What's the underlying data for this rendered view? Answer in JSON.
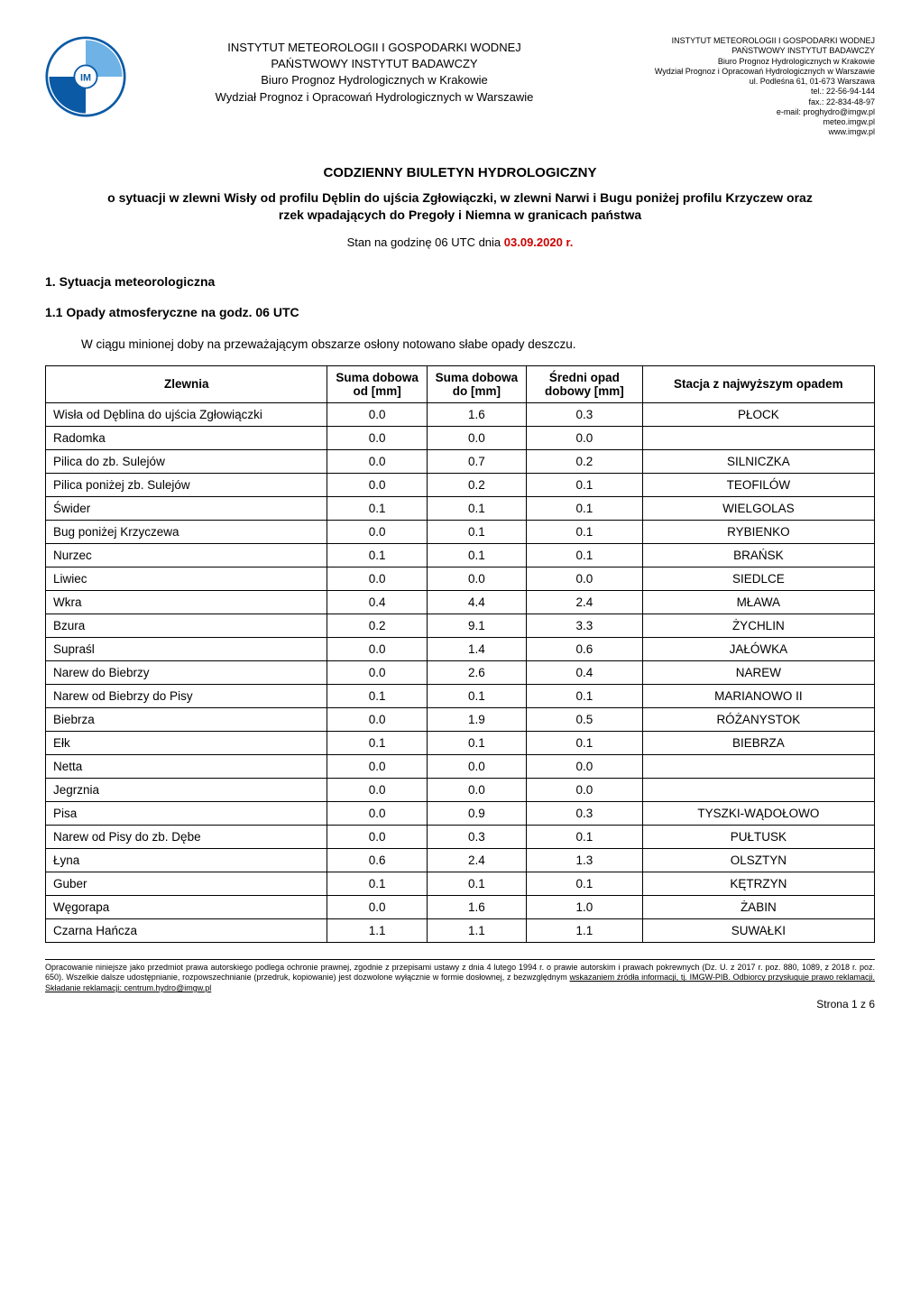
{
  "header": {
    "center": {
      "line1": "INSTYTUT METEOROLOGII I GOSPODARKI WODNEJ",
      "line2": "PAŃSTWOWY INSTYTUT BADAWCZY",
      "line3": "Biuro Prognoz Hydrologicznych w Krakowie",
      "line4": "Wydział Prognoz i Opracowań Hydrologicznych w Warszawie"
    },
    "right": {
      "l1": "INSTYTUT METEOROLOGII I GOSPODARKI WODNEJ",
      "l2": "PAŃSTWOWY INSTYTUT BADAWCZY",
      "l3": "Biuro Prognoz Hydrologicznych w Krakowie",
      "l4": "Wydział Prognoz i Opracowań Hydrologicznych w Warszawie",
      "l5": "ul. Podleśna 61, 01-673 Warszawa",
      "l6": "tel.: 22-56-94-144",
      "l7": "fax.: 22-834-48-97",
      "l8": "e-mail: proghydro@imgw.pl",
      "l9": "meteo.imgw.pl",
      "l10": "www.imgw.pl"
    }
  },
  "title": "CODZIENNY BIULETYN HYDROLOGICZNY",
  "subtitle": "o sytuacji w zlewni Wisły od profilu Dęblin do ujścia Zgłowiączki, w zlewni Narwi i Bugu poniżej profilu Krzyczew oraz rzek wpadających do Pregoły i Niemna w granicach państwa",
  "date_prefix": "Stan na godzinę 06 UTC dnia ",
  "date_value": "03.09.2020 r.",
  "sec1": "1.   Sytuacja meteorologiczna",
  "sec11": "1.1   Opady atmosferyczne na godz. 06 UTC",
  "para1": "W ciągu minionej doby na przeważającym obszarze osłony notowano słabe opady deszczu.",
  "table": {
    "columns": {
      "c1": "Zlewnia",
      "c2": "Suma dobowa od [mm]",
      "c3": "Suma dobowa do [mm]",
      "c4": "Średni opad dobowy [mm]",
      "c5": "Stacja z najwyższym opadem"
    },
    "col_widths": [
      "34%",
      "12%",
      "12%",
      "14%",
      "28%"
    ],
    "header_fontsize": 13,
    "cell_fontsize": 13.5,
    "border_color": "#000000",
    "rows": [
      {
        "z": "Wisła od Dęblina do ujścia Zgłowiączki",
        "od": "0.0",
        "do": "1.6",
        "sr": "0.3",
        "st": "PŁOCK"
      },
      {
        "z": "Radomka",
        "od": "0.0",
        "do": "0.0",
        "sr": "0.0",
        "st": ""
      },
      {
        "z": "Pilica do zb. Sulejów",
        "od": "0.0",
        "do": "0.7",
        "sr": "0.2",
        "st": "SILNICZKA"
      },
      {
        "z": "Pilica poniżej zb. Sulejów",
        "od": "0.0",
        "do": "0.2",
        "sr": "0.1",
        "st": "TEOFILÓW"
      },
      {
        "z": "Świder",
        "od": "0.1",
        "do": "0.1",
        "sr": "0.1",
        "st": "WIELGOLAS"
      },
      {
        "z": "Bug poniżej Krzyczewa",
        "od": "0.0",
        "do": "0.1",
        "sr": "0.1",
        "st": "RYBIENKO"
      },
      {
        "z": "Nurzec",
        "od": "0.1",
        "do": "0.1",
        "sr": "0.1",
        "st": "BRAŃSK"
      },
      {
        "z": "Liwiec",
        "od": "0.0",
        "do": "0.0",
        "sr": "0.0",
        "st": "SIEDLCE"
      },
      {
        "z": "Wkra",
        "od": "0.4",
        "do": "4.4",
        "sr": "2.4",
        "st": "MŁAWA"
      },
      {
        "z": "Bzura",
        "od": "0.2",
        "do": "9.1",
        "sr": "3.3",
        "st": "ŻYCHLIN"
      },
      {
        "z": "Supraśl",
        "od": "0.0",
        "do": "1.4",
        "sr": "0.6",
        "st": "JAŁÓWKA"
      },
      {
        "z": "Narew do Biebrzy",
        "od": "0.0",
        "do": "2.6",
        "sr": "0.4",
        "st": "NAREW"
      },
      {
        "z": "Narew od Biebrzy do Pisy",
        "od": "0.1",
        "do": "0.1",
        "sr": "0.1",
        "st": "MARIANOWO II"
      },
      {
        "z": "Biebrza",
        "od": "0.0",
        "do": "1.9",
        "sr": "0.5",
        "st": "RÓŻANYSTOK"
      },
      {
        "z": "Ełk",
        "od": "0.1",
        "do": "0.1",
        "sr": "0.1",
        "st": "BIEBRZA"
      },
      {
        "z": "Netta",
        "od": "0.0",
        "do": "0.0",
        "sr": "0.0",
        "st": ""
      },
      {
        "z": "Jegrznia",
        "od": "0.0",
        "do": "0.0",
        "sr": "0.0",
        "st": ""
      },
      {
        "z": "Pisa",
        "od": "0.0",
        "do": "0.9",
        "sr": "0.3",
        "st": "TYSZKI-WĄDOŁOWO"
      },
      {
        "z": "Narew od Pisy do zb. Dębe",
        "od": "0.0",
        "do": "0.3",
        "sr": "0.1",
        "st": "PUŁTUSK"
      },
      {
        "z": "Łyna",
        "od": "0.6",
        "do": "2.4",
        "sr": "1.3",
        "st": "OLSZTYN"
      },
      {
        "z": "Guber",
        "od": "0.1",
        "do": "0.1",
        "sr": "0.1",
        "st": "KĘTRZYN"
      },
      {
        "z": "Węgorapa",
        "od": "0.0",
        "do": "1.6",
        "sr": "1.0",
        "st": "ŻABIN"
      },
      {
        "z": "Czarna Hańcza",
        "od": "1.1",
        "do": "1.1",
        "sr": "1.1",
        "st": "SUWAŁKI"
      }
    ]
  },
  "footer": {
    "text_plain": "Opracowanie niniejsze jako przedmiot prawa autorskiego podlega ochronie prawnej, zgodnie z przepisami ustawy z dnia 4 lutego 1994 r. o prawie autorskim i prawach pokrewnych (Dz. U. z 2017 r. poz. 880, 1089, z 2018 r. poz. 650). Wszelkie dalsze udostępnianie, rozpowszechnianie (przedruk, kopiowanie) jest dozwolone wyłącznie w formie dosłownej, z bezwzględnym ",
    "text_underlined": "wskazaniem źródła informacji, tj. IMGW-PIB. Odbiorcy przysługuje prawo reklamacji. Składanie reklamacji: centrum.hydro@imgw.pl"
  },
  "page_num": "Strona 1 z 6",
  "colors": {
    "text": "#000000",
    "date_red": "#cc0000",
    "background": "#ffffff",
    "logo_outer": "#0b5aa5",
    "logo_light": "#6fb2e6"
  }
}
